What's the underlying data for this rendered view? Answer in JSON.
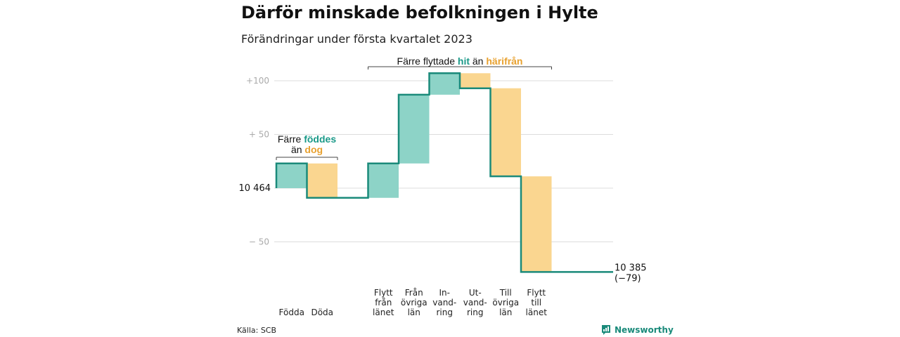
{
  "title": "Därför minskade befolkningen i Hylte",
  "subtitle": "Förändringar under första kvartalet 2023",
  "source": "Källa: SCB",
  "brand": "Newsworthy",
  "colors": {
    "increase": "#8dd3c7",
    "decrease": "#fad690",
    "line": "#1a8a7a",
    "grid": "#dddddd"
  },
  "chart_data": {
    "type": "waterfall",
    "start": {
      "value": 10464,
      "label": "10 464"
    },
    "end": {
      "value": 10385,
      "label": "10 385",
      "change_label": "(−79)"
    },
    "categories": [
      {
        "label": [
          "Födda"
        ],
        "delta": 23,
        "kind": "increase"
      },
      {
        "label": [
          "Döda"
        ],
        "delta": -32,
        "kind": "decrease"
      },
      {
        "label": [],
        "delta": 0,
        "kind": "none"
      },
      {
        "label": [
          "Flytt",
          "från",
          "länet"
        ],
        "delta": 32,
        "kind": "increase"
      },
      {
        "label": [
          "Från",
          "övriga",
          "län"
        ],
        "delta": 64,
        "kind": "increase"
      },
      {
        "label": [
          "In-",
          "vand-",
          "ring"
        ],
        "delta": 20,
        "kind": "increase"
      },
      {
        "label": [
          "Ut-",
          "vand-",
          "ring"
        ],
        "delta": -14,
        "kind": "decrease"
      },
      {
        "label": [
          "Till",
          "övriga",
          "län"
        ],
        "delta": -82,
        "kind": "decrease"
      },
      {
        "label": [
          "Flytt",
          "till",
          "länet"
        ],
        "delta": -89,
        "kind": "decrease"
      }
    ],
    "yticks": [
      {
        "value": 100,
        "label": "+100"
      },
      {
        "value": 50,
        "label": "+ 50"
      },
      {
        "value": 0,
        "label": ""
      },
      {
        "value": -50,
        "label": "− 50"
      }
    ],
    "ylim": [
      -90,
      110
    ],
    "annotations": [
      {
        "from": 0,
        "to": 1,
        "parts": [
          [
            {
              "t": "Färre ",
              "c": ""
            },
            {
              "t": "föddes",
              "c": "teal"
            }
          ],
          [
            {
              "t": "än ",
              "c": ""
            },
            {
              "t": "dog",
              "c": "orange"
            }
          ]
        ]
      },
      {
        "from": 3,
        "to": 8,
        "parts": [
          [
            {
              "t": "Färre flyttade ",
              "c": ""
            },
            {
              "t": "hit",
              "c": "teal"
            },
            {
              "t": " än ",
              "c": ""
            },
            {
              "t": "härifrån",
              "c": "orange"
            }
          ]
        ]
      }
    ]
  }
}
